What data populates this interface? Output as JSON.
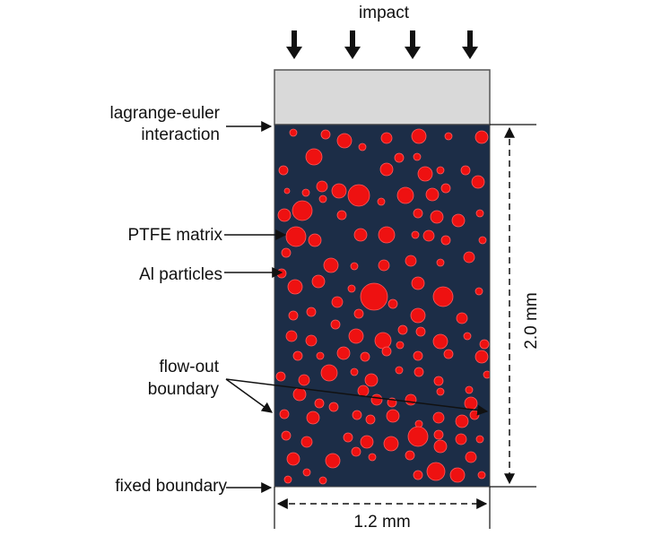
{
  "labels": {
    "impact": "impact",
    "lagrange_euler_line1": "lagrange-euler",
    "lagrange_euler_line2": "interaction",
    "ptfe_matrix": "PTFE matrix",
    "al_particles": "Al particles",
    "flow_out_line1": "flow-out",
    "flow_out_line2": "boundary",
    "fixed_boundary": "fixed boundary",
    "height_dimension": "2.0 mm",
    "width_dimension": "1.2 mm"
  },
  "colors": {
    "matrix": "#1c2d47",
    "particle": "#ee1111",
    "particle_outline": "#ff5a5a",
    "impactor": "#d9d9d9",
    "ink": "#111111"
  },
  "icons": {
    "impact_arrow": "down-arrow-icon",
    "callout_arrow": "right-arrow-icon"
  }
}
